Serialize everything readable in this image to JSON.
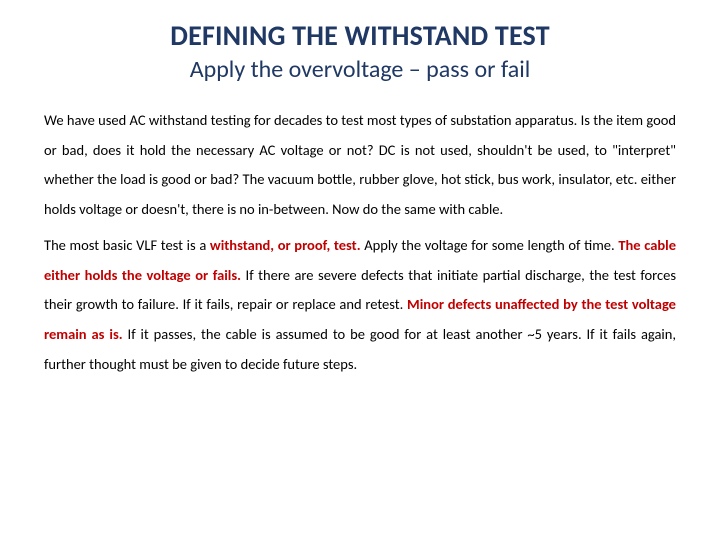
{
  "colors": {
    "title_color": "#1f3864",
    "subtitle_color": "#1f3864",
    "body_color": "#000000",
    "highlight_color": "#c00000",
    "background": "#ffffff"
  },
  "typography": {
    "title_fontsize": 28,
    "title_weight": 700,
    "subtitle_fontsize": 24,
    "subtitle_weight": 400,
    "body_fontsize": 14.5,
    "line_height": 2.05,
    "font_family": "Calibri"
  },
  "title": "DEFINING THE WITHSTAND TEST",
  "subtitle": "Apply the overvoltage – pass or fail",
  "para1": "We have used AC withstand testing for decades to test most types of substation apparatus. Is the item good or bad, does it hold the necessary AC voltage or not? DC is not used, shouldn't be used, to \"interpret\" whether the load is good or bad? The vacuum bottle, rubber glove, hot stick, bus work, insulator, etc.  either holds voltage or doesn't, there is no in-between. Now do the same with cable.",
  "p2a": "The most basic VLF test is a ",
  "p2hl1": "withstand, or proof, test.",
  "p2b": " Apply the voltage for some length of time. ",
  "p2hl2": "The cable either holds the voltage or fails.",
  "p2c": " If there are severe defects that initiate partial discharge, the test forces their growth to failure. If it fails, repair or replace and retest. ",
  "p2hl3": "Minor defects unaffected by the test voltage remain as is.",
  "p2d": " If it passes, the cable is assumed to be good for at least another ~5 years. If it fails again, further thought must be given to decide future steps."
}
